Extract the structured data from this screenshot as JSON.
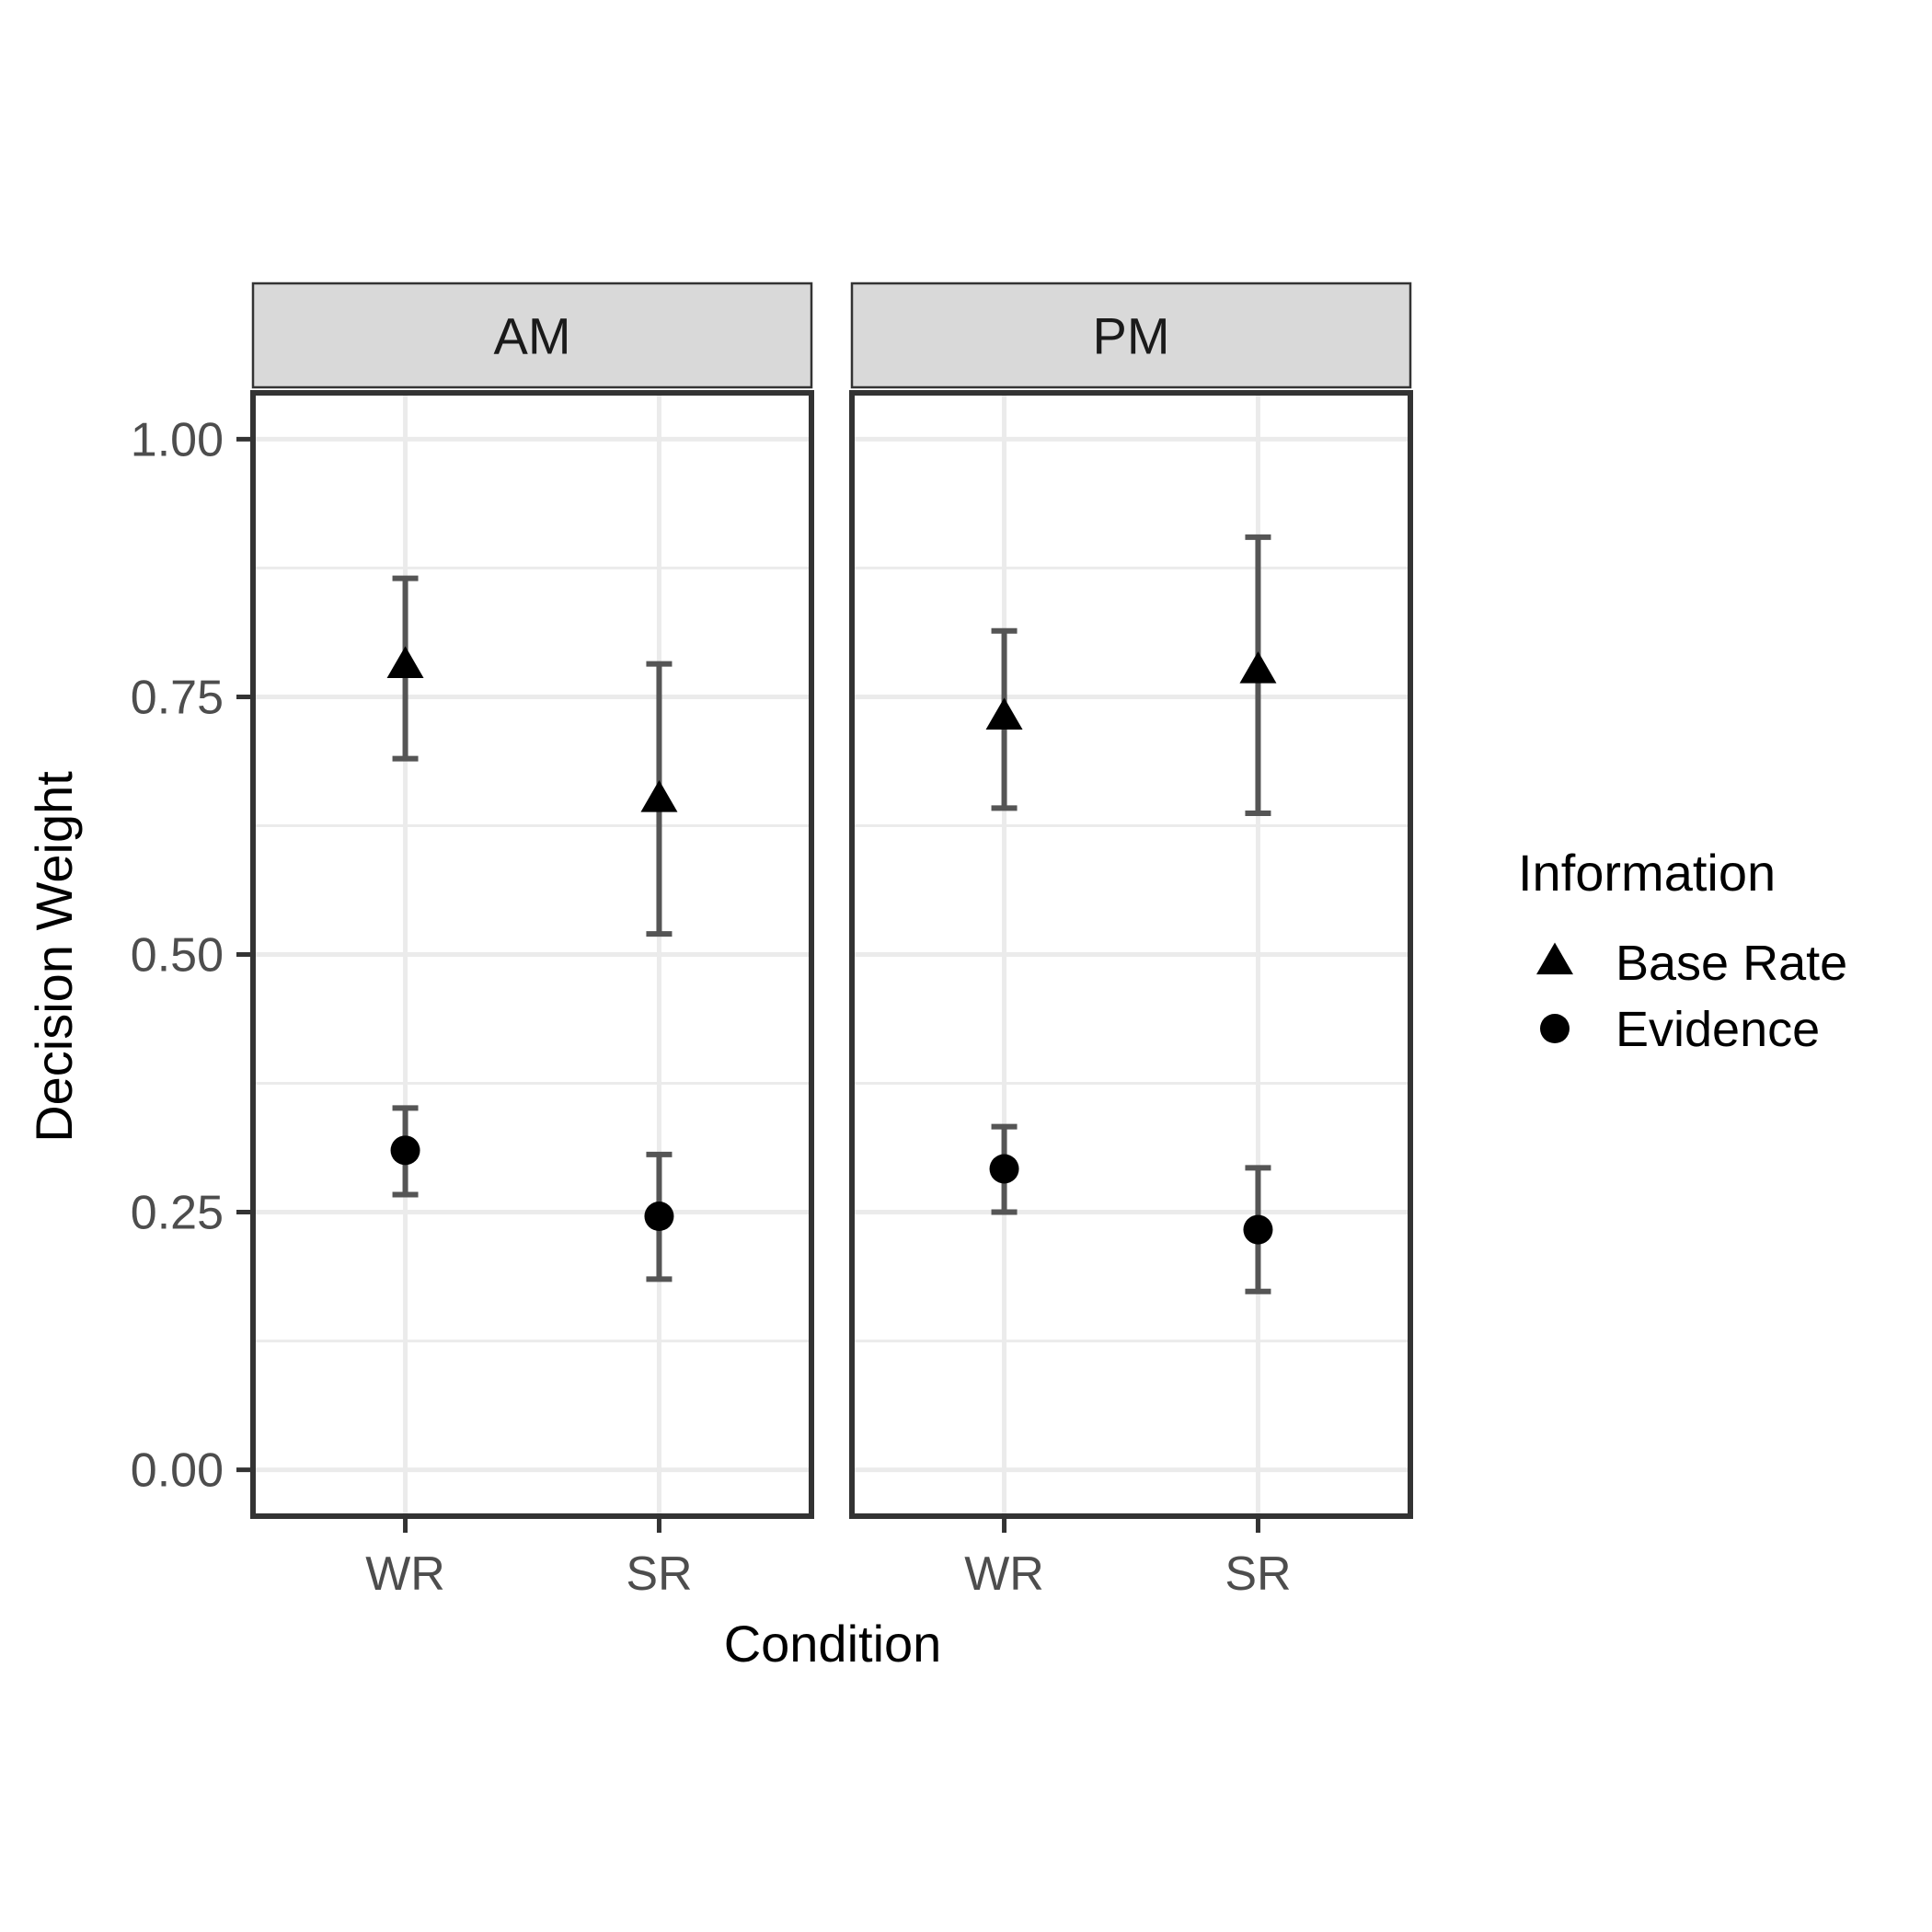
{
  "chart_data": {
    "type": "scatter",
    "title": "",
    "xlabel": "Condition",
    "ylabel": "Decision Weight",
    "ylim": [
      -0.045,
      1.045
    ],
    "yticks": [
      0.0,
      0.25,
      0.5,
      0.75,
      1.0
    ],
    "ytick_labels": [
      "0.00",
      "0.25",
      "0.50",
      "0.75",
      "1.00"
    ],
    "categories": [
      "WR",
      "SR"
    ],
    "facets": [
      "AM",
      "PM"
    ],
    "grid": true,
    "legend": {
      "title": "Information",
      "placement": "right",
      "entries": [
        {
          "label": "Base Rate",
          "shape": "triangle"
        },
        {
          "label": "Evidence",
          "shape": "circle"
        }
      ]
    },
    "series": [
      {
        "name": "Base Rate",
        "shape": "triangle",
        "points": {
          "AM": [
            {
              "x": "WR",
              "y": 0.78,
              "lo": 0.69,
              "hi": 0.865
            },
            {
              "x": "SR",
              "y": 0.65,
              "lo": 0.52,
              "hi": 0.782
            }
          ],
          "PM": [
            {
              "x": "WR",
              "y": 0.73,
              "lo": 0.642,
              "hi": 0.814
            },
            {
              "x": "SR",
              "y": 0.775,
              "lo": 0.637,
              "hi": 0.905
            }
          ]
        }
      },
      {
        "name": "Evidence",
        "shape": "circle",
        "points": {
          "AM": [
            {
              "x": "WR",
              "y": 0.31,
              "lo": 0.267,
              "hi": 0.351
            },
            {
              "x": "SR",
              "y": 0.246,
              "lo": 0.185,
              "hi": 0.306
            }
          ],
          "PM": [
            {
              "x": "WR",
              "y": 0.292,
              "lo": 0.25,
              "hi": 0.333
            },
            {
              "x": "SR",
              "y": 0.233,
              "lo": 0.173,
              "hi": 0.293
            }
          ]
        }
      }
    ],
    "colors": {
      "panel_border": "#333333",
      "strip_fill": "#d9d9d9",
      "grid": "#ebebeb",
      "errorbar": "#555555",
      "point": "#000000"
    }
  }
}
